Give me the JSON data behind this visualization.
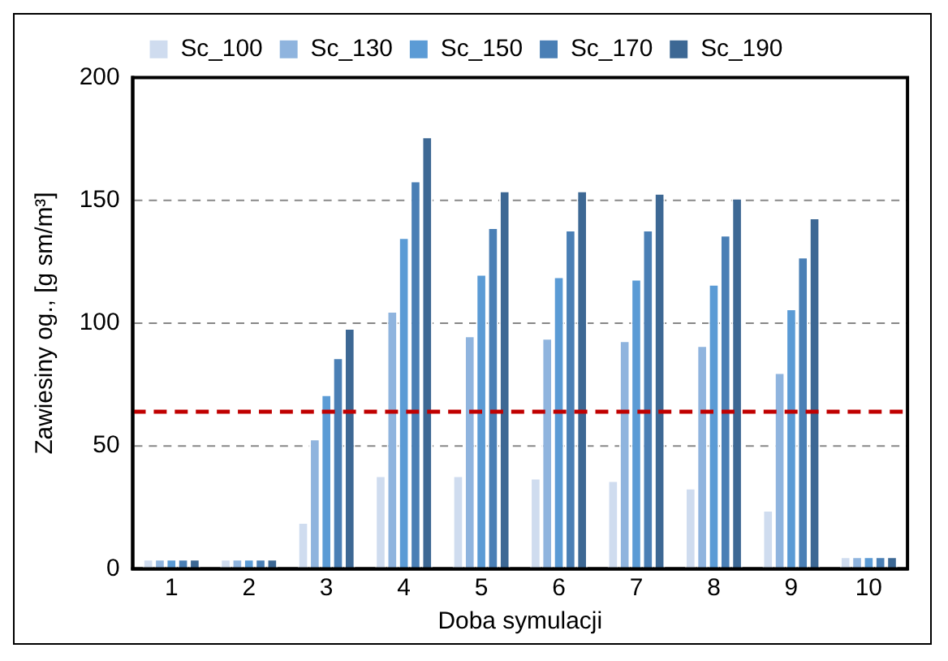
{
  "chart_data": {
    "type": "bar",
    "xlabel": "Doba symulacji",
    "ylabel": "Zawiesiny og., [g sm/m³]",
    "categories": [
      "1",
      "2",
      "3",
      "4",
      "5",
      "6",
      "7",
      "8",
      "9",
      "10"
    ],
    "series": [
      {
        "name": "Sc_100",
        "color": "#cfdcef",
        "values": [
          4,
          4,
          19,
          38,
          38,
          37,
          36,
          33,
          24,
          5
        ]
      },
      {
        "name": "Sc_130",
        "color": "#8fb4de",
        "values": [
          4,
          4,
          53,
          105,
          95,
          94,
          93,
          91,
          80,
          5
        ]
      },
      {
        "name": "Sc_150",
        "color": "#5b9bd5",
        "values": [
          4,
          4,
          71,
          135,
          120,
          119,
          118,
          116,
          106,
          5
        ]
      },
      {
        "name": "Sc_170",
        "color": "#4a7fb5",
        "values": [
          4,
          4,
          86,
          158,
          139,
          138,
          138,
          136,
          127,
          5
        ]
      },
      {
        "name": "Sc_190",
        "color": "#3d6894",
        "values": [
          4,
          4,
          98,
          176,
          154,
          154,
          153,
          151,
          143,
          5
        ]
      }
    ],
    "ylim": [
      0,
      200
    ],
    "yticks": [
      0,
      50,
      100,
      150,
      200
    ],
    "grid": "y",
    "legend": "top",
    "ref_lines": [
      {
        "axis": "y",
        "value": 64,
        "color": "#c00000",
        "line_style": "dashed"
      }
    ]
  }
}
